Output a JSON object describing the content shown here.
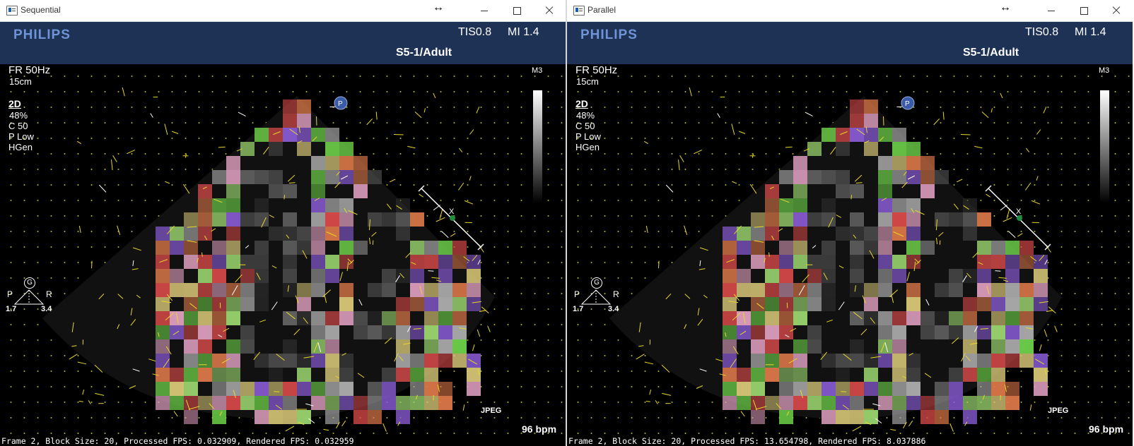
{
  "windows": [
    {
      "title": "Sequential",
      "header": {
        "brand": "PHILIPS",
        "tis": "TIS0.8",
        "mi": "MI 1.4",
        "probe": "S5-1/Adult"
      },
      "overlay": {
        "frame_rate": "FR 50Hz",
        "depth": "15cm",
        "mode": "2D",
        "gain": "48%",
        "compression": "C 50",
        "power": "P Low",
        "frequency": "HGen",
        "map": "M3",
        "orient_mark": "G",
        "orient_left": "P",
        "orient_right": "R",
        "orient_left_value": "1.7",
        "orient_right_value": "3.4",
        "probe_marker": "P",
        "caliper_label": "X",
        "format": "JPEG",
        "heart_rate": "96 bpm"
      },
      "status": "Frame 2, Block Size: 20, Processed FPS: 0.032909, Rendered FPS: 0.032959"
    },
    {
      "title": "Parallel",
      "header": {
        "brand": "PHILIPS",
        "tis": "TIS0.8",
        "mi": "MI 1.4",
        "probe": "S5-1/Adult"
      },
      "overlay": {
        "frame_rate": "FR 50Hz",
        "depth": "15cm",
        "mode": "2D",
        "gain": "48%",
        "compression": "C 50",
        "power": "P Low",
        "frequency": "HGen",
        "map": "M3",
        "orient_mark": "G",
        "orient_left": "P",
        "orient_right": "R",
        "orient_left_value": "1.7",
        "orient_right_value": "3.4",
        "probe_marker": "P",
        "caliper_label": "X",
        "format": "JPEG",
        "heart_rate": "96 bpm"
      },
      "status": "Frame 2, Block Size: 20, Processed FPS: 13.654798, Rendered FPS: 8.037886"
    }
  ],
  "colors": {
    "header_bg": "#1e3256",
    "brand": "#6f93d4",
    "block_palette": [
      "#8a5cd6",
      "#6fd24a",
      "#d8c878",
      "#e07a4a",
      "#d94a4a",
      "#b0b0b0",
      "#e0a0c0",
      "#9dd870"
    ]
  },
  "icons": [
    "app-window-icon",
    "resize-icon",
    "minimize-icon",
    "maximize-icon",
    "close-icon"
  ]
}
